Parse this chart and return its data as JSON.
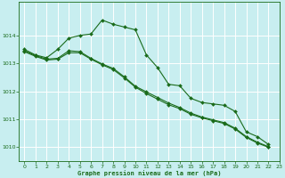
{
  "title": "Graphe pression niveau de la mer (hPa)",
  "bg_color": "#c8eef0",
  "grid_color": "#aadddd",
  "line_color": "#1a6b1a",
  "xlim": [
    -0.5,
    23
  ],
  "ylim": [
    1009.5,
    1015.2
  ],
  "yticks": [
    1010,
    1011,
    1012,
    1013,
    1014
  ],
  "xticks": [
    0,
    1,
    2,
    3,
    4,
    5,
    6,
    7,
    8,
    9,
    10,
    11,
    12,
    13,
    14,
    15,
    16,
    17,
    18,
    19,
    20,
    21,
    22,
    23
  ],
  "line1_x": [
    0,
    1,
    2,
    3,
    4,
    5,
    6,
    7,
    8,
    9,
    10,
    11,
    12,
    13,
    14,
    15,
    16,
    17,
    18,
    19,
    20,
    21,
    22
  ],
  "line1_y": [
    1013.5,
    1013.3,
    1013.2,
    1013.5,
    1013.9,
    1014.0,
    1014.05,
    1014.55,
    1014.4,
    1014.3,
    1014.2,
    1013.3,
    1012.85,
    1012.25,
    1012.2,
    1011.75,
    1011.6,
    1011.55,
    1011.5,
    1011.28,
    1010.55,
    1010.38,
    1010.1
  ],
  "line2_x": [
    0,
    1,
    2,
    3,
    4,
    5,
    6,
    7,
    8,
    9,
    10,
    11,
    12,
    13,
    14,
    15,
    16,
    17,
    18,
    19,
    20,
    21,
    22
  ],
  "line2_y": [
    1013.45,
    1013.28,
    1013.15,
    1013.18,
    1013.45,
    1013.42,
    1013.18,
    1012.98,
    1012.82,
    1012.52,
    1012.18,
    1011.98,
    1011.78,
    1011.58,
    1011.42,
    1011.22,
    1011.08,
    1010.98,
    1010.88,
    1010.68,
    1010.38,
    1010.18,
    1010.02
  ],
  "line3_x": [
    0,
    1,
    2,
    3,
    4,
    5,
    6,
    7,
    8,
    9,
    10,
    11,
    12,
    13,
    14,
    15,
    16,
    17,
    18,
    19,
    20,
    21,
    22
  ],
  "line3_y": [
    1013.42,
    1013.25,
    1013.12,
    1013.15,
    1013.38,
    1013.38,
    1013.15,
    1012.95,
    1012.78,
    1012.48,
    1012.15,
    1011.92,
    1011.72,
    1011.52,
    1011.38,
    1011.18,
    1011.05,
    1010.95,
    1010.85,
    1010.65,
    1010.35,
    1010.15,
    1010.0
  ]
}
